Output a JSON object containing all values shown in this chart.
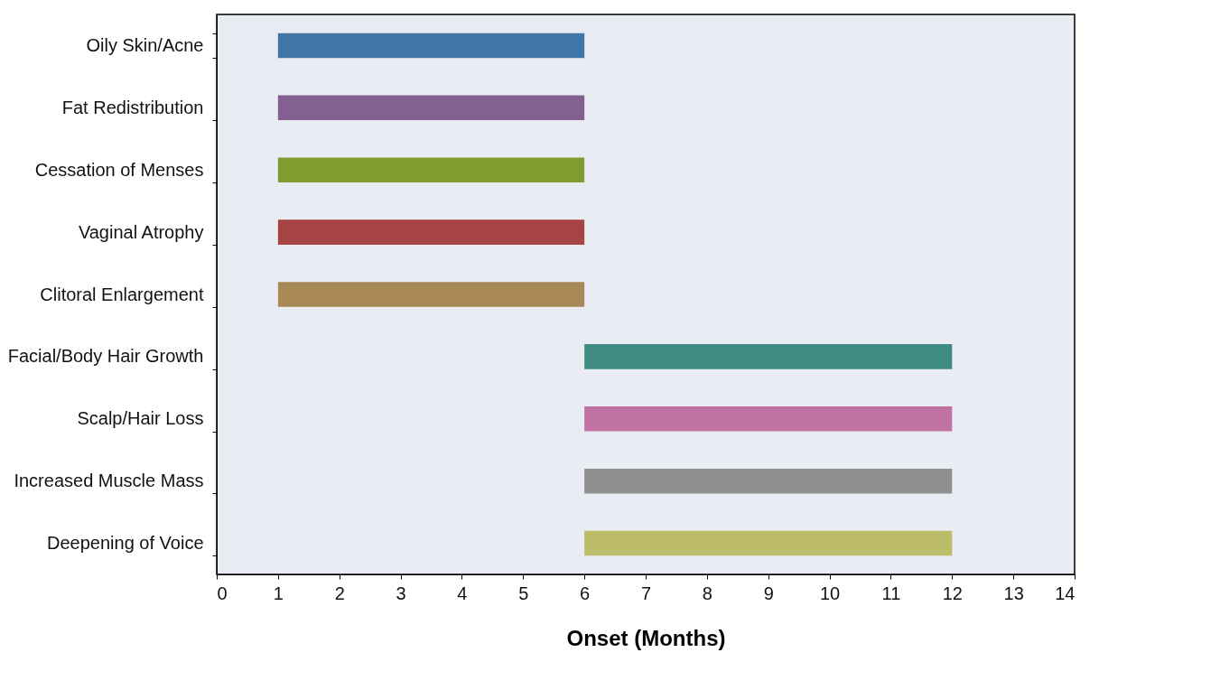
{
  "chart_data": {
    "type": "bar",
    "orientation": "horizontal",
    "xlabel": "Onset (Months)",
    "categories": [
      "Oily Skin/Acne",
      "Fat Redistribution",
      "Cessation of Menses",
      "Vaginal Atrophy",
      "Clitoral Enlargement",
      "Facial/Body Hair Growth",
      "Scalp/Hair Loss",
      "Increased Muscle Mass",
      "Deepening of Voice"
    ],
    "base": [
      1,
      1,
      1,
      1,
      1,
      6,
      6,
      6,
      6
    ],
    "values": [
      5,
      5,
      5,
      5,
      5,
      6,
      6,
      6,
      6
    ],
    "colors": [
      "#3e76a8",
      "#83608f",
      "#7f9c30",
      "#a54442",
      "#a98a57",
      "#3f8c82",
      "#c073a2",
      "#8f8f8f",
      "#bdbc68"
    ],
    "xlim": [
      0,
      14
    ],
    "xticks": [
      0,
      1,
      2,
      3,
      4,
      5,
      6,
      7,
      8,
      9,
      10,
      11,
      12,
      13,
      14
    ],
    "grid": false
  }
}
